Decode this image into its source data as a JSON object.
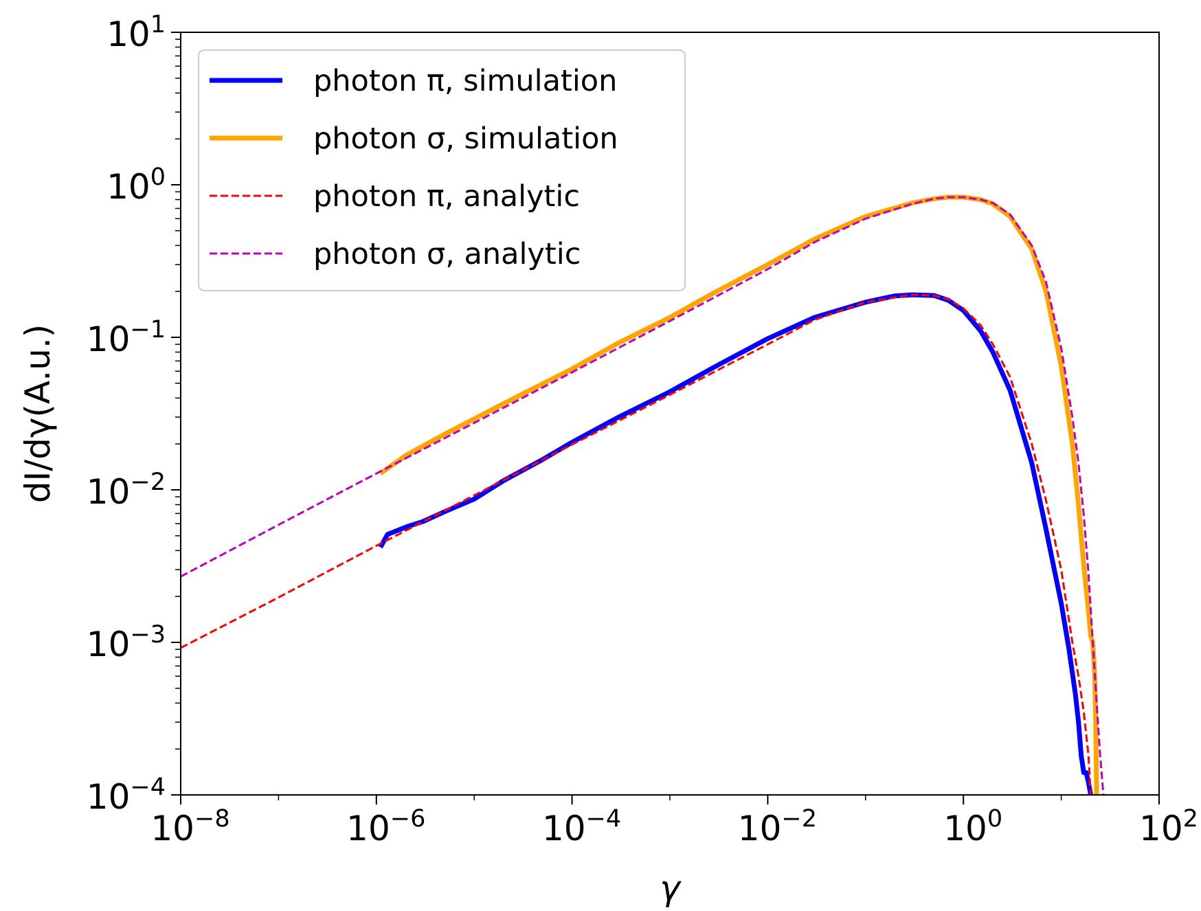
{
  "chart_data": {
    "type": "line",
    "xscale": "log",
    "yscale": "log",
    "xlim": [
      1e-08,
      100
    ],
    "ylim": [
      0.0001,
      10
    ],
    "xlabel": "γ",
    "ylabel": "dI/dγ(A.u.)",
    "xticks": [
      {
        "value": 1e-08,
        "base": "10",
        "exp": "−8"
      },
      {
        "value": 1e-06,
        "base": "10",
        "exp": "−6"
      },
      {
        "value": 0.0001,
        "base": "10",
        "exp": "−4"
      },
      {
        "value": 0.01,
        "base": "10",
        "exp": "−2"
      },
      {
        "value": 1,
        "base": "10",
        "exp": "0"
      },
      {
        "value": 100,
        "base": "10",
        "exp": "2"
      }
    ],
    "yticks": [
      {
        "value": 0.0001,
        "base": "10",
        "exp": "−4"
      },
      {
        "value": 0.001,
        "base": "10",
        "exp": "−3"
      },
      {
        "value": 0.01,
        "base": "10",
        "exp": "−2"
      },
      {
        "value": 0.1,
        "base": "10",
        "exp": "−1"
      },
      {
        "value": 1,
        "base": "10",
        "exp": "0"
      },
      {
        "value": 10,
        "base": "10",
        "exp": "1"
      }
    ],
    "grid": false,
    "legend_position": "top-left",
    "series": [
      {
        "name": "photon π, simulation",
        "color": "#0000ff",
        "style": "solid",
        "x": [
          1.1e-06,
          1.3e-06,
          2e-06,
          3e-06,
          5e-06,
          1e-05,
          2e-05,
          5e-05,
          0.0001,
          0.0003,
          0.001,
          0.003,
          0.01,
          0.03,
          0.1,
          0.2,
          0.3,
          0.5,
          0.7,
          1,
          1.5,
          2,
          3,
          5,
          7,
          10,
          12,
          14,
          15,
          16,
          17,
          18,
          19,
          20
        ],
        "y": [
          0.0042,
          0.0051,
          0.0057,
          0.0062,
          0.0072,
          0.0087,
          0.0115,
          0.0158,
          0.0205,
          0.03,
          0.044,
          0.065,
          0.098,
          0.135,
          0.17,
          0.187,
          0.19,
          0.188,
          0.175,
          0.15,
          0.11,
          0.08,
          0.045,
          0.015,
          0.0055,
          0.0018,
          0.0009,
          0.00045,
          0.0003,
          0.00018,
          0.00014,
          0.00014,
          0.00012,
          0.0001
        ]
      },
      {
        "name": "photon σ, simulation",
        "color": "#ffa500",
        "style": "solid",
        "x": [
          1.1e-06,
          2e-06,
          5e-06,
          1e-05,
          3e-05,
          0.0001,
          0.0003,
          0.001,
          0.003,
          0.01,
          0.03,
          0.1,
          0.3,
          0.5,
          0.7,
          1,
          1.5,
          2,
          3,
          5,
          7,
          10,
          13,
          15,
          17,
          19,
          20,
          21,
          22,
          22.5,
          23
        ],
        "y": [
          0.0128,
          0.0168,
          0.0232,
          0.0292,
          0.042,
          0.062,
          0.092,
          0.135,
          0.2,
          0.3,
          0.44,
          0.62,
          0.76,
          0.81,
          0.83,
          0.83,
          0.8,
          0.75,
          0.62,
          0.38,
          0.2,
          0.065,
          0.02,
          0.008,
          0.0032,
          0.0016,
          0.0011,
          0.001,
          0.0006,
          0.0003,
          0.0001
        ]
      },
      {
        "name": "photon π, analytic",
        "color": "#ff0000",
        "style": "dashed",
        "x": [
          1e-08,
          1e-07,
          1e-06,
          1e-05,
          0.0001,
          0.001,
          0.01,
          0.03,
          0.1,
          0.3,
          0.5,
          0.7,
          1,
          1.5,
          2,
          3,
          5,
          7,
          10,
          13,
          15,
          17,
          19,
          20
        ],
        "y": [
          0.00092,
          0.00197,
          0.0043,
          0.0092,
          0.0198,
          0.042,
          0.09,
          0.13,
          0.17,
          0.19,
          0.188,
          0.178,
          0.155,
          0.12,
          0.09,
          0.055,
          0.02,
          0.0085,
          0.003,
          0.001,
          0.0006,
          0.00035,
          0.00018,
          0.0001
        ]
      },
      {
        "name": "photon σ, analytic",
        "color": "#bf00bf",
        "style": "dashed",
        "x": [
          1e-08,
          1e-07,
          1e-06,
          1e-05,
          0.0001,
          0.001,
          0.01,
          0.03,
          0.1,
          0.3,
          0.5,
          0.7,
          1,
          1.5,
          2,
          3,
          5,
          7,
          10,
          13,
          15,
          17,
          19,
          21,
          23,
          25,
          27
        ],
        "y": [
          0.0027,
          0.0059,
          0.0128,
          0.0275,
          0.059,
          0.128,
          0.28,
          0.42,
          0.6,
          0.75,
          0.81,
          0.83,
          0.83,
          0.8,
          0.76,
          0.64,
          0.4,
          0.23,
          0.085,
          0.03,
          0.015,
          0.0068,
          0.0028,
          0.001,
          0.0004,
          0.00018,
          0.0001
        ]
      }
    ]
  }
}
